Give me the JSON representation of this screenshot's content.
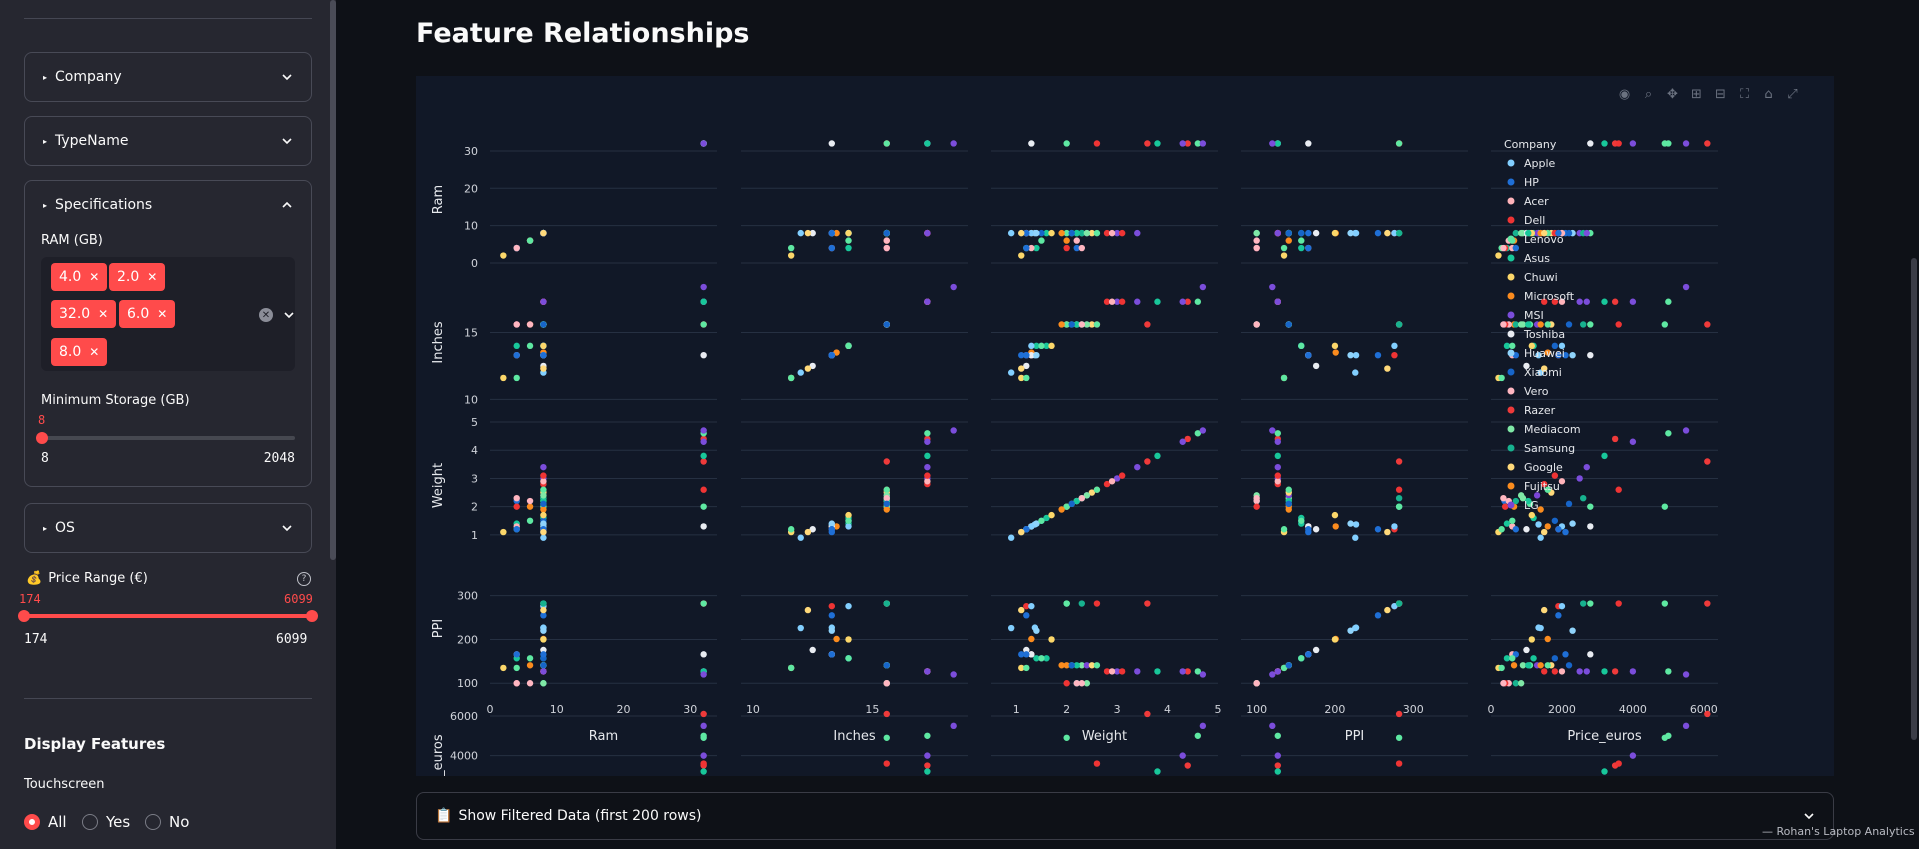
{
  "sidebar": {
    "company_label": "Company",
    "typename_label": "TypeName",
    "specs_label": "Specifications",
    "ram_label": "RAM (GB)",
    "ram_tags": [
      "4.0",
      "2.0",
      "32.0",
      "6.0",
      "8.0"
    ],
    "storage_label": "Minimum Storage (GB)",
    "storage_value": "8",
    "storage_min": "8",
    "storage_max": "2048",
    "os_label": "OS",
    "price_icon": "💰",
    "price_label": "Price Range (€)",
    "price_low": "174",
    "price_high": "6099",
    "price_min": "174",
    "price_max": "6099",
    "display_title": "Display Features",
    "touch_label": "Touchscreen",
    "radio_options": [
      "All",
      "Yes",
      "No"
    ],
    "radio_selected": "All"
  },
  "main": {
    "title": "Feature Relationships",
    "data_expander_icon": "📋",
    "data_expander_label": "Show Filtered Data (first 200 rows)",
    "footer": "— Rohan's Laptop Analytics"
  },
  "colors": {
    "accent": "#ff4b4b",
    "legend": {
      "Apple": "#82cfff",
      "HP": "#1f6fd6",
      "Acer": "#ffb3ba",
      "Dell": "#ef3434",
      "Lenovo": "#5ee8a2",
      "Asus": "#18c79a",
      "Chuwi": "#fcd76a",
      "Microsoft": "#fb8b1e",
      "MSI": "#7b4ddb",
      "Toshiba": "#e9ecf2",
      "Huawei": "#8fd3fb",
      "Xiaomi": "#1765c9",
      "Vero": "#ffb6c1",
      "Razer": "#ef3a3a",
      "Mediacom": "#7fe8a6",
      "Samsung": "#17b28f",
      "Google": "#ffd97a",
      "Fujitsu": "#fb8c1e",
      "LG": "#7a45d6"
    }
  },
  "chart_data": {
    "type": "scatter",
    "title": "",
    "dimensions": [
      "Ram",
      "Inches",
      "Weight",
      "PPI",
      "Price_euros"
    ],
    "legend_title": "Company",
    "legend": [
      "Apple",
      "HP",
      "Acer",
      "Dell",
      "Lenovo",
      "Asus",
      "Chuwi",
      "Microsoft",
      "MSI",
      "Toshiba",
      "Huawei",
      "Xiaomi",
      "Vero",
      "Razer",
      "Mediacom",
      "Samsung",
      "Google",
      "Fujitsu",
      "LG"
    ],
    "legend_position": "right",
    "grid": true,
    "axes": {
      "Ram": {
        "range": [
          0,
          34
        ],
        "ticks": [
          0,
          10,
          20,
          30
        ]
      },
      "Inches": {
        "range": [
          9.5,
          19
        ],
        "ticks": [
          10,
          15
        ]
      },
      "Weight": {
        "range": [
          0.5,
          5
        ],
        "ticks": [
          1,
          2,
          3,
          4,
          5
        ]
      },
      "PPI": {
        "range": [
          80,
          370
        ],
        "ticks": [
          100,
          200,
          300
        ]
      },
      "Price_euros": {
        "range": [
          0,
          6400
        ],
        "ticks": [
          0,
          2000,
          4000,
          6000
        ]
      }
    },
    "points": [
      [
        2,
        11.6,
        1.1,
        135,
        210,
        "Chuwi"
      ],
      [
        4,
        14.0,
        1.4,
        157,
        450,
        "Asus"
      ],
      [
        4,
        15.6,
        2.2,
        100,
        380,
        "HP"
      ],
      [
        4,
        13.3,
        1.3,
        166,
        600,
        "Acer"
      ],
      [
        6,
        15.6,
        2.0,
        141,
        650,
        "Microsoft"
      ],
      [
        8,
        13.3,
        1.37,
        227,
        1340,
        "Apple"
      ],
      [
        8,
        15.6,
        2.1,
        141,
        1100,
        "Lenovo"
      ],
      [
        8,
        15.6,
        2.3,
        141,
        900,
        "Mediacom"
      ],
      [
        8,
        14.0,
        1.6,
        157,
        1200,
        "Asus"
      ],
      [
        8,
        17.3,
        2.8,
        127,
        1500,
        "Dell"
      ],
      [
        8,
        13.3,
        1.2,
        276,
        1900,
        "Dell"
      ],
      [
        8,
        12.5,
        1.2,
        176,
        1000,
        "Toshiba"
      ],
      [
        8,
        15.6,
        2.2,
        100,
        700,
        "Samsung"
      ],
      [
        8,
        13.5,
        1.3,
        201,
        1600,
        "Microsoft"
      ],
      [
        8,
        17.3,
        3.0,
        127,
        2500,
        "MSI"
      ],
      [
        8,
        15.6,
        2.4,
        141,
        1300,
        "LG"
      ],
      [
        8,
        14.0,
        1.5,
        157,
        1800,
        "Xiaomi"
      ],
      [
        8,
        13.3,
        1.1,
        166,
        2100,
        "HP"
      ],
      [
        8,
        15.6,
        2.0,
        282,
        2800,
        "Lenovo"
      ],
      [
        8,
        12.0,
        0.9,
        226,
        1400,
        "Apple"
      ],
      [
        6,
        15.6,
        2.2,
        100,
        500,
        "Vero"
      ],
      [
        4,
        11.6,
        1.2,
        135,
        300,
        "Lenovo"
      ],
      [
        4,
        15.6,
        2.0,
        100,
        400,
        "Dell"
      ],
      [
        8,
        15.6,
        2.5,
        141,
        1700,
        "Google"
      ],
      [
        32,
        17.3,
        4.4,
        127,
        3500,
        "Razer"
      ],
      [
        32,
        17.3,
        4.6,
        127,
        5000,
        "Lenovo"
      ],
      [
        32,
        17.3,
        4.3,
        127,
        4000,
        "MSI"
      ],
      [
        32,
        15.6,
        3.6,
        282,
        6099,
        "Razer"
      ],
      [
        32,
        15.6,
        2.6,
        282,
        3600,
        "Dell"
      ],
      [
        32,
        13.3,
        1.3,
        166,
        2800,
        "Toshiba"
      ],
      [
        32,
        17.3,
        3.8,
        127,
        3200,
        "Asus"
      ],
      [
        32,
        15.6,
        2.0,
        282,
        4900,
        "Lenovo"
      ],
      [
        32,
        18.4,
        4.7,
        120,
        5500,
        "MSI"
      ],
      [
        8,
        14.0,
        1.3,
        276,
        2000,
        "Apple"
      ],
      [
        8,
        13.3,
        1.4,
        220,
        2300,
        "Huawei"
      ],
      [
        8,
        15.6,
        1.9,
        141,
        1400,
        "Fujitsu"
      ],
      [
        8,
        15.6,
        2.3,
        282,
        2600,
        "Samsung"
      ],
      [
        8,
        17.3,
        2.9,
        127,
        2000,
        "Acer"
      ],
      [
        4,
        13.3,
        1.2,
        166,
        700,
        "HP"
      ],
      [
        8,
        14.0,
        1.7,
        200,
        1150,
        "Chuwi"
      ],
      [
        8,
        15.6,
        2.2,
        141,
        1050,
        "Asus"
      ],
      [
        8,
        17.3,
        3.1,
        127,
        1800,
        "Dell"
      ],
      [
        6,
        14.0,
        1.5,
        157,
        600,
        "Lenovo"
      ],
      [
        8,
        13.3,
        1.2,
        255,
        1900,
        "HP"
      ],
      [
        8,
        15.6,
        2.6,
        141,
        1600,
        "Lenovo"
      ],
      [
        8,
        15.6,
        2.4,
        100,
        850,
        "Mediacom"
      ],
      [
        4,
        15.6,
        2.3,
        100,
        350,
        "Vero"
      ],
      [
        8,
        15.6,
        2.1,
        141,
        2200,
        "Xiaomi"
      ],
      [
        8,
        17.3,
        3.4,
        127,
        2700,
        "MSI"
      ],
      [
        8,
        12.3,
        1.1,
        267,
        1500,
        "Google"
      ]
    ]
  }
}
